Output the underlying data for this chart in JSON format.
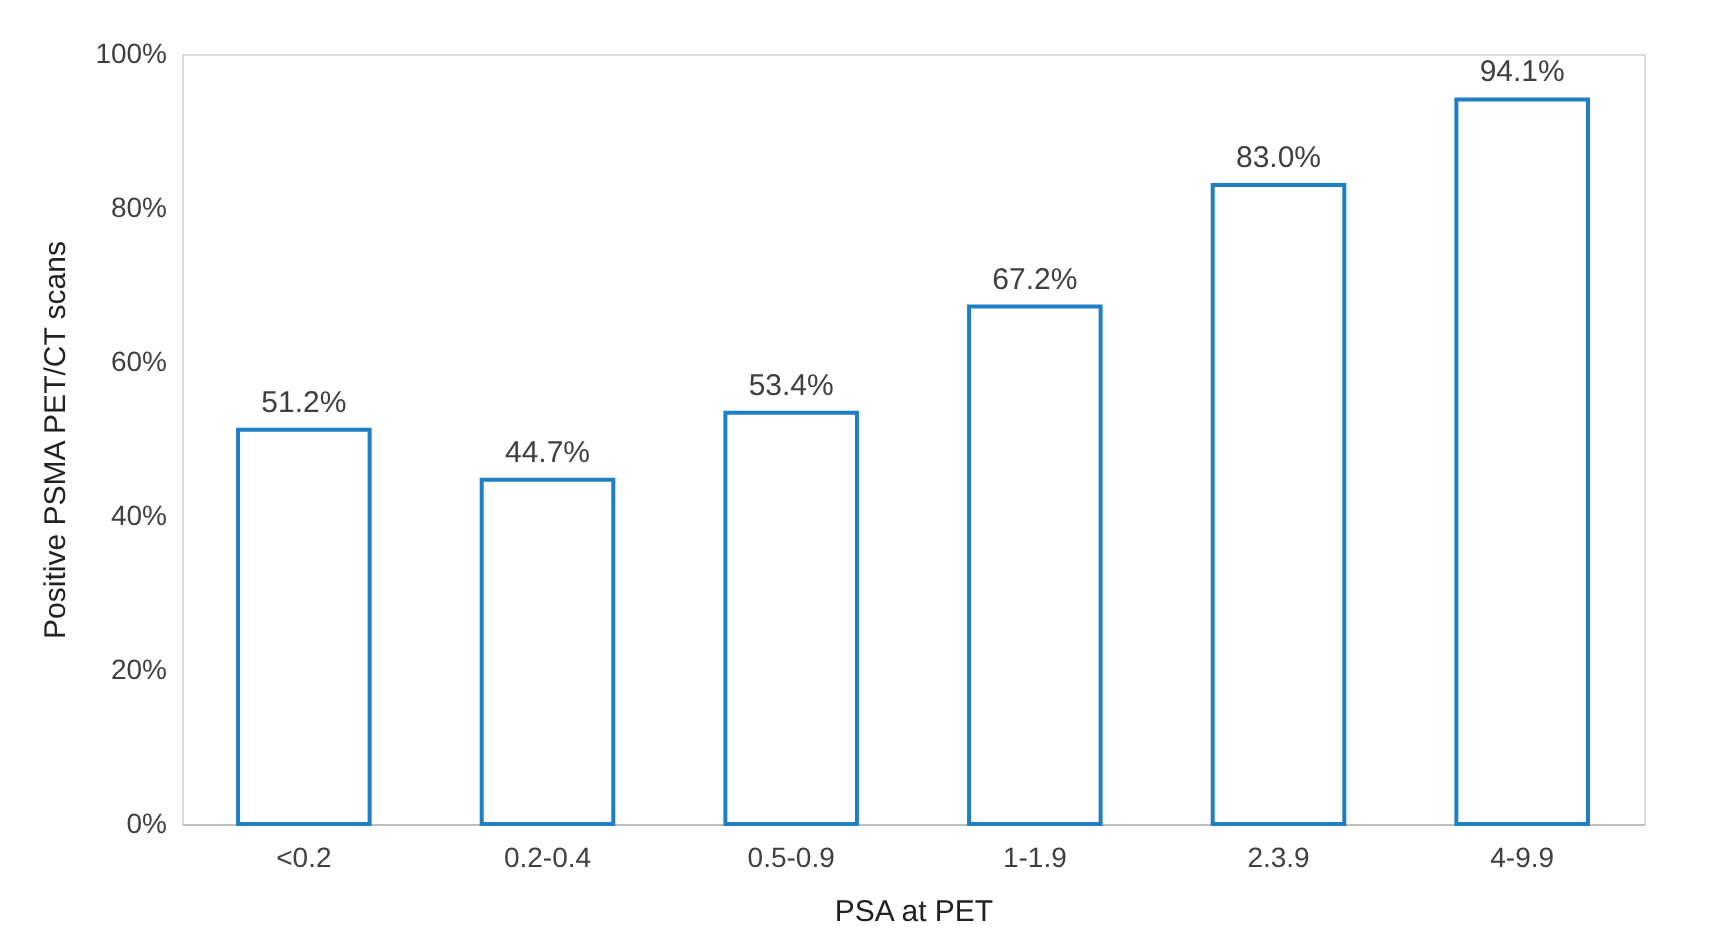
{
  "chart_data": {
    "type": "bar",
    "xlabel": "PSA at PET",
    "ylabel": "Positive PSMA PET/CT scans",
    "categories": [
      "<0.2",
      "0.2-0.4",
      "0.5-0.9",
      "1-1.9",
      "2.3.9",
      "4-9.9"
    ],
    "values": [
      51.2,
      44.7,
      53.4,
      67.2,
      83.0,
      94.1
    ],
    "value_labels": [
      "51.2%",
      "44.7%",
      "53.4%",
      "67.2%",
      "83.0%",
      "94.1%"
    ],
    "color": "#1f7fc4",
    "ylim": [
      0,
      100
    ],
    "yticks": [
      {
        "value": 0,
        "label": "0%"
      },
      {
        "value": 20,
        "label": "20%"
      },
      {
        "value": 40,
        "label": "40%"
      },
      {
        "value": 60,
        "label": "60%"
      },
      {
        "value": 80,
        "label": "80%"
      },
      {
        "value": 100,
        "label": "100%"
      }
    ],
    "grid": false
  }
}
